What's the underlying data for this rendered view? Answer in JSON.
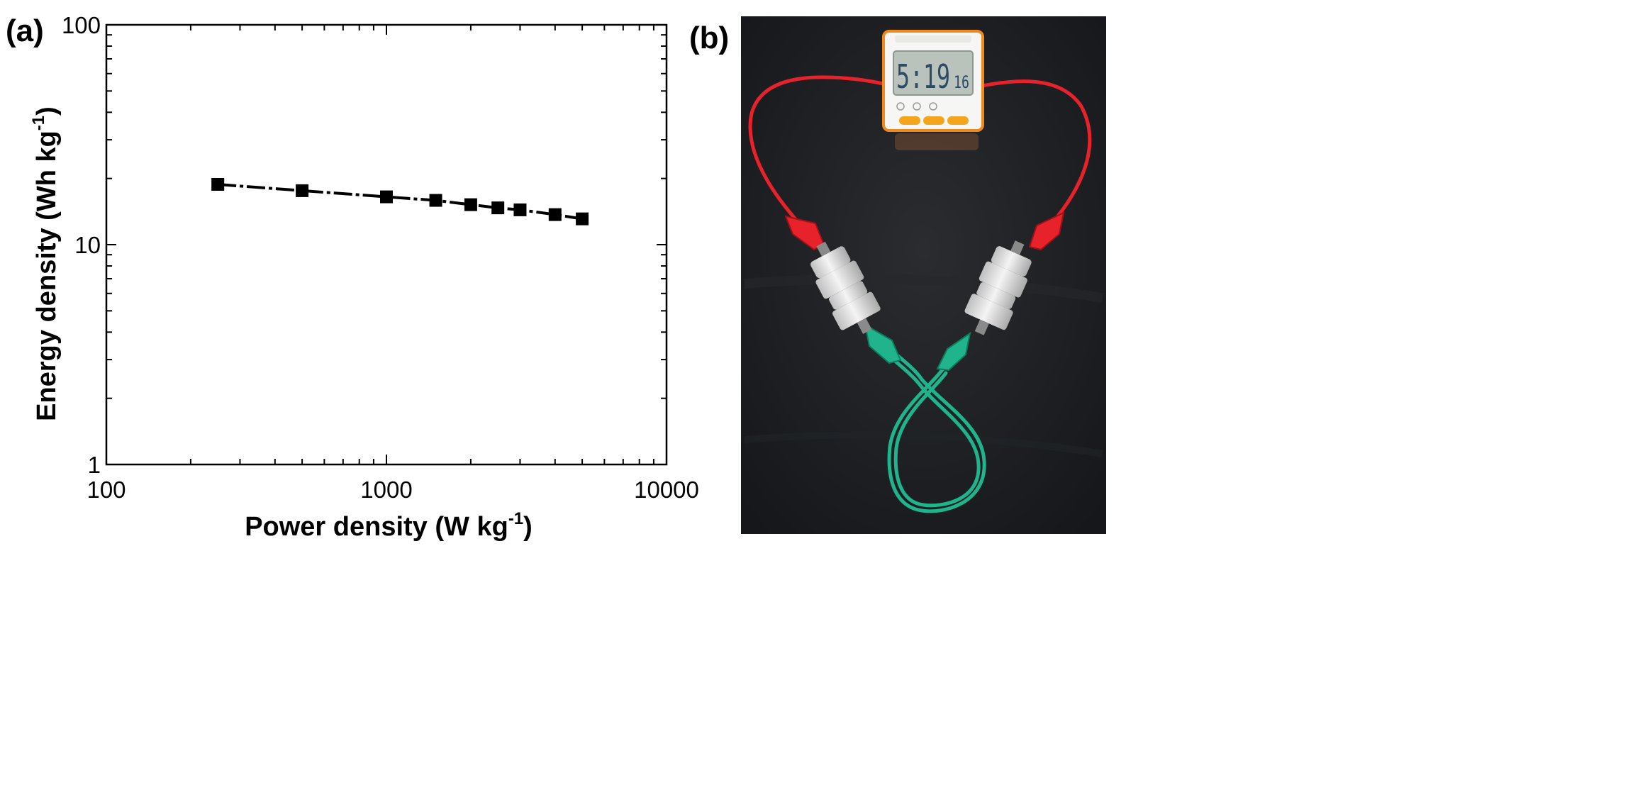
{
  "panels": {
    "a_label": "(a)",
    "b_label": "(b)"
  },
  "chart_data": {
    "type": "line",
    "xscale": "log",
    "yscale": "log",
    "xlim": [
      100,
      10000
    ],
    "ylim": [
      1,
      100
    ],
    "xticks": [
      "100",
      "1000",
      "10000"
    ],
    "yticks": [
      "1",
      "10",
      "100"
    ],
    "xlabel": "Power density (W kg",
    "xlabel_sup": "-1",
    "xlabel_end": ")",
    "ylabel": "Energy density (Wh kg",
    "ylabel_sup": "-1",
    "ylabel_end": ")",
    "marker": "square",
    "color": "#000000",
    "series": [
      {
        "x": [
          250,
          500,
          1000,
          1500,
          2000,
          2500,
          3000,
          4000,
          5000
        ],
        "y": [
          18.8,
          17.6,
          16.5,
          15.9,
          15.2,
          14.7,
          14.4,
          13.7,
          13.1
        ]
      }
    ]
  },
  "photo": {
    "timer_reading": "5:19",
    "timer_seconds": "16",
    "wire_colors": {
      "positive": "#e8222a",
      "negative": "#1fb48c",
      "background": "#1d1f22"
    }
  }
}
